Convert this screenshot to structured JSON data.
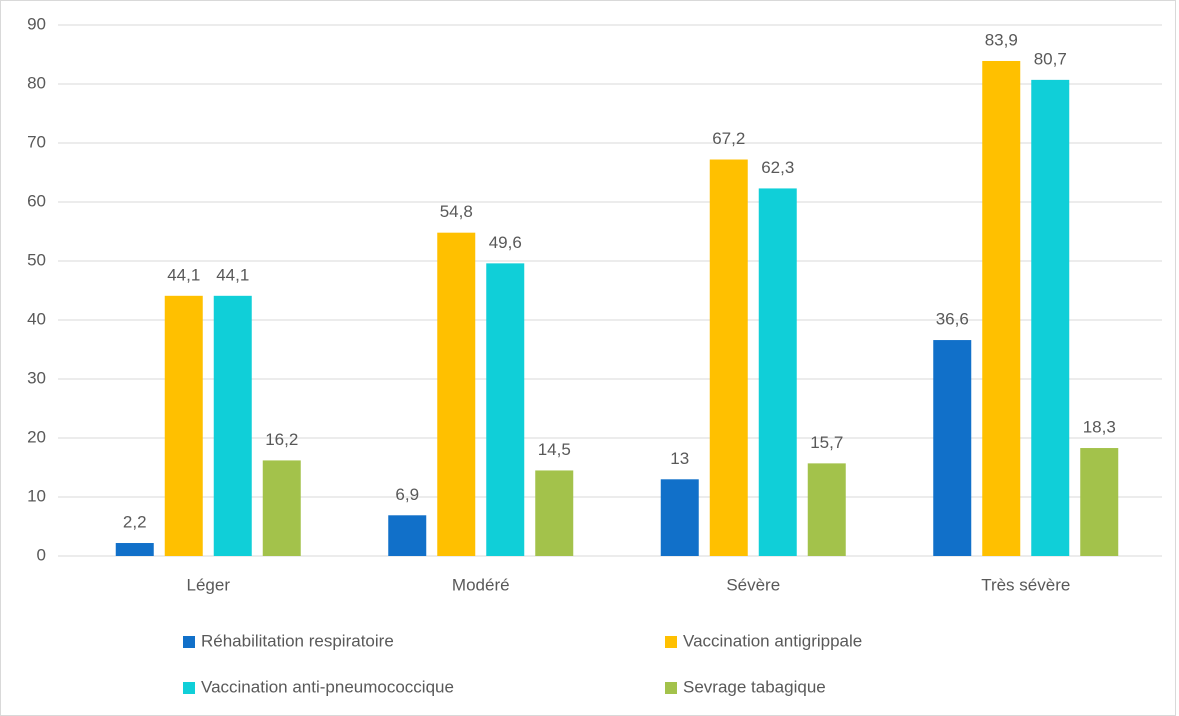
{
  "chart_data": {
    "type": "bar",
    "categories": [
      "Léger",
      "Modéré",
      "Sévère",
      "Très sévère"
    ],
    "series": [
      {
        "name": "Réhabilitation respiratoire",
        "color": "#1170c9",
        "values": [
          2.2,
          6.9,
          13,
          36.6
        ],
        "value_labels": [
          "2,2",
          "6,9",
          "13",
          "36,6"
        ]
      },
      {
        "name": "Vaccination antigrippale",
        "color": "#ffc000",
        "values": [
          44.1,
          54.8,
          67.2,
          83.9
        ],
        "value_labels": [
          "44,1",
          "54,8",
          "67,2",
          "83,9"
        ]
      },
      {
        "name": "Vaccination anti-pneumococcique",
        "color": "#10cfd8",
        "values": [
          44.1,
          49.6,
          62.3,
          80.7
        ],
        "value_labels": [
          "44,1",
          "49,6",
          "62,3",
          "80,7"
        ]
      },
      {
        "name": "Sevrage tabagique",
        "color": "#a3c24b",
        "values": [
          16.2,
          14.5,
          15.7,
          18.3
        ],
        "value_labels": [
          "16,2",
          "14,5",
          "15,7",
          "18,3"
        ]
      }
    ],
    "ylim": [
      0,
      90
    ],
    "yticks": [
      0,
      10,
      20,
      30,
      40,
      50,
      60,
      70,
      80,
      90
    ],
    "grid": true,
    "legend": "bottom"
  }
}
